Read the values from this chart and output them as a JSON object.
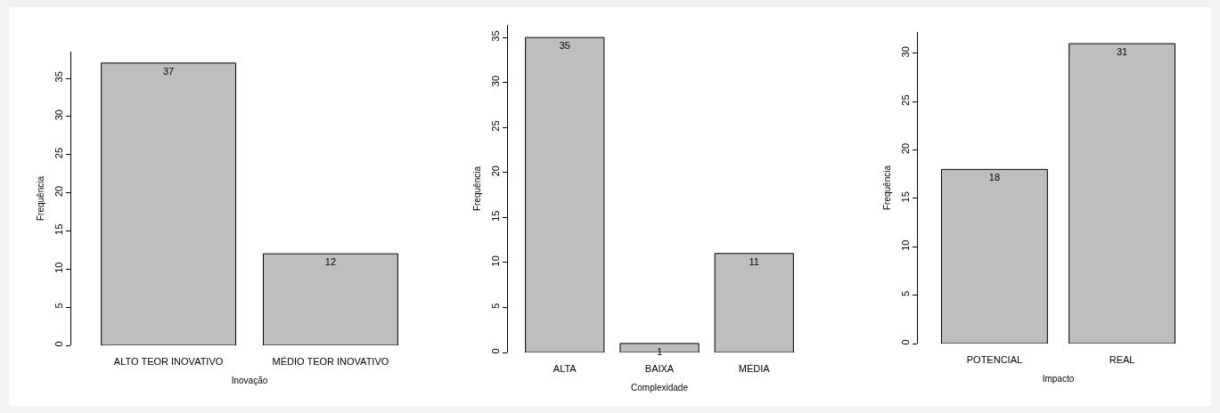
{
  "chart_data": [
    {
      "type": "bar",
      "xlabel": "Inovação",
      "ylabel": "Frequência",
      "categories": [
        "ALTO TEOR INOVATIVO",
        "MÉDIO TEOR INOVATIVO"
      ],
      "values": [
        37,
        12
      ],
      "color": "#bebebe",
      "ylim": [
        0,
        38.5
      ],
      "yticks": [
        0,
        5,
        10,
        15,
        20,
        25,
        30,
        35
      ],
      "grid": false,
      "data_labels": true
    },
    {
      "type": "bar",
      "xlabel": "Complexidade",
      "ylabel": "Frequência",
      "categories": [
        "ALTA",
        "BAIXA",
        "MÉDIA"
      ],
      "values": [
        35,
        1,
        11
      ],
      "color": "#bebebe",
      "ylim": [
        0,
        36.4
      ],
      "yticks": [
        0,
        5,
        10,
        15,
        20,
        25,
        30,
        35
      ],
      "grid": false,
      "data_labels": true
    },
    {
      "type": "bar",
      "xlabel": "Impacto",
      "ylabel": "Frequência",
      "categories": [
        "POTENCIAL",
        "REAL"
      ],
      "values": [
        18,
        31
      ],
      "color": "#bebebe",
      "ylim": [
        0,
        32.2
      ],
      "yticks": [
        0,
        5,
        10,
        15,
        20,
        25,
        30
      ],
      "grid": false,
      "data_labels": true
    }
  ]
}
